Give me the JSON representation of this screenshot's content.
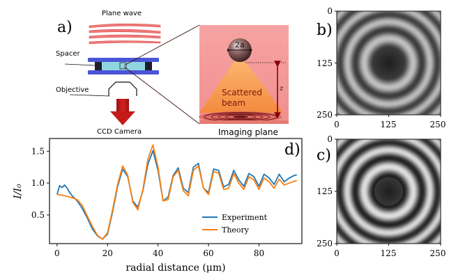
{
  "panels": {
    "a": "a)",
    "b": "b)",
    "c": "c)",
    "d": "d)"
  },
  "schematic": {
    "plane_wave": "Plane wave",
    "spacer": "Spacer",
    "objective": "Objective",
    "ccd_camera": "CCD Camera",
    "particle_label": "2a",
    "scattered_beam_line1": "Scattered",
    "scattered_beam_line2": "beam",
    "z_label": "z",
    "imaging_plane": "Imaging plane",
    "colors": {
      "wave": "#e85a5a",
      "spacer": "#4a55d8",
      "arrow": "#c41a1a",
      "zoom_bg": "#f6a0a0",
      "beam": "#f79a4e",
      "z_arrow": "#8b0000"
    }
  },
  "holograms": {
    "b": {
      "ticks_y": [
        "0",
        "125",
        "250"
      ],
      "ticks_x": [
        "0",
        "125",
        "250"
      ],
      "source": "experiment"
    },
    "c": {
      "ticks_y": [
        "0",
        "125",
        "250"
      ],
      "ticks_x": [
        "0",
        "125",
        "250"
      ],
      "source": "theory"
    }
  },
  "chart_data": {
    "type": "line",
    "xlabel": "radial distance (μm)",
    "ylabel": "I/I₀",
    "xlim": [
      -3,
      97
    ],
    "ylim": [
      0.05,
      1.7
    ],
    "xticks": [
      0,
      20,
      40,
      60,
      80
    ],
    "yticks": [
      0.5,
      1.0,
      1.5
    ],
    "xtick_labels": [
      "0",
      "20",
      "40",
      "60",
      "80"
    ],
    "ytick_labels": [
      "0.5",
      "1.0",
      "1.5"
    ],
    "legend_placement": "lower-right",
    "series": [
      {
        "name": "Experiment",
        "color": "#1f77b4",
        "x": [
          0,
          1,
          2,
          3,
          4,
          5,
          6,
          8,
          10,
          12,
          14,
          16,
          18,
          20,
          22,
          24,
          26,
          28,
          30,
          32,
          34,
          36,
          38,
          40,
          42,
          44,
          46,
          48,
          50,
          52,
          54,
          56,
          58,
          60,
          62,
          64,
          66,
          68,
          70,
          72,
          74,
          76,
          78,
          80,
          82,
          84,
          86,
          88,
          90,
          92,
          94,
          95
        ],
        "y": [
          0.82,
          0.96,
          0.93,
          0.97,
          0.92,
          0.85,
          0.8,
          0.72,
          0.6,
          0.45,
          0.28,
          0.17,
          0.12,
          0.2,
          0.55,
          0.95,
          1.22,
          1.1,
          0.72,
          0.62,
          0.88,
          1.3,
          1.51,
          1.2,
          0.72,
          0.78,
          1.12,
          1.24,
          0.92,
          0.85,
          1.25,
          1.31,
          0.92,
          0.85,
          1.22,
          1.2,
          0.94,
          0.98,
          1.2,
          1.05,
          0.95,
          1.15,
          1.1,
          0.95,
          1.14,
          1.08,
          0.98,
          1.14,
          1.02,
          1.08,
          1.12,
          1.13
        ]
      },
      {
        "name": "Theory",
        "color": "#ff7f0e",
        "x": [
          0,
          2,
          4,
          6,
          8,
          10,
          12,
          14,
          16,
          18,
          20,
          22,
          24,
          26,
          28,
          30,
          32,
          34,
          36,
          38,
          40,
          42,
          44,
          46,
          48,
          50,
          52,
          54,
          56,
          58,
          60,
          62,
          64,
          66,
          68,
          70,
          72,
          74,
          76,
          78,
          80,
          82,
          84,
          86,
          88,
          90,
          92,
          94,
          95
        ],
        "y": [
          0.82,
          0.81,
          0.79,
          0.77,
          0.74,
          0.65,
          0.48,
          0.32,
          0.18,
          0.12,
          0.22,
          0.58,
          0.98,
          1.27,
          1.12,
          0.7,
          0.58,
          0.9,
          1.38,
          1.6,
          1.25,
          0.72,
          0.74,
          1.1,
          1.2,
          0.88,
          0.8,
          1.2,
          1.27,
          0.92,
          0.82,
          1.18,
          1.16,
          0.9,
          0.92,
          1.15,
          1.0,
          0.9,
          1.1,
          1.05,
          0.9,
          1.08,
          1.02,
          0.92,
          1.06,
          0.97,
          1.0,
          1.03,
          1.04
        ]
      }
    ]
  }
}
